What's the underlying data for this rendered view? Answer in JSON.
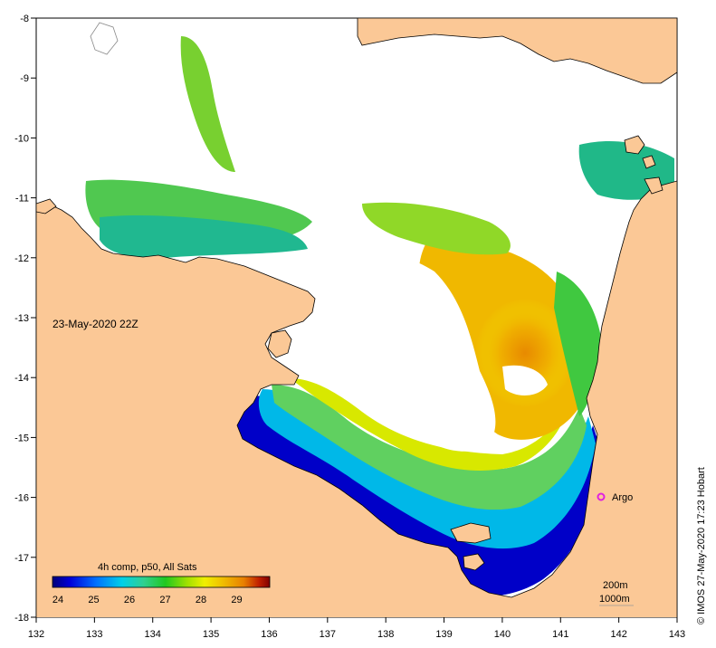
{
  "map": {
    "timestamp": "23-May-2020 22Z",
    "credit": "© IMOS 27-May-2020 17:23 Hobart",
    "argo_label": "Argo",
    "colorbar_title": "4h comp, p50, All Sats",
    "colorbar_ticks": [
      "24",
      "25",
      "26",
      "27",
      "28",
      "29"
    ],
    "depth_200": "200m",
    "depth_1000": "1000m",
    "lon_ticks": [
      "132",
      "133",
      "134",
      "135",
      "136",
      "137",
      "138",
      "139",
      "140",
      "141",
      "142",
      "143"
    ],
    "lat_ticks": [
      "-8",
      "-9",
      "-10",
      "-11",
      "-12",
      "-13",
      "-14",
      "-15",
      "-16",
      "-17",
      "-18"
    ],
    "colors": {
      "land": "#fbc896",
      "no_data": "#ffffff",
      "argo": "#e020e0",
      "sst_scale": [
        "#00007a",
        "#0000d8",
        "#0070ff",
        "#00d0e8",
        "#30d090",
        "#20c820",
        "#a0e000",
        "#f0f000",
        "#f0c000",
        "#e88000",
        "#c02000",
        "#800000"
      ]
    }
  }
}
